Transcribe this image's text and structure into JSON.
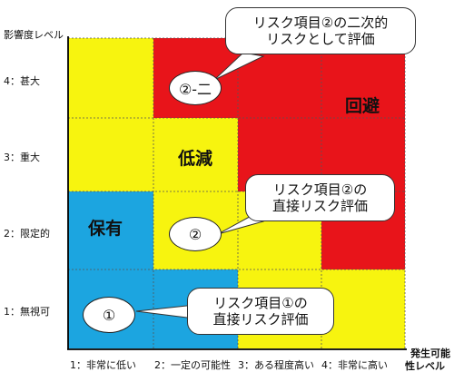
{
  "axes": {
    "y_title": "影響度レベル",
    "y_ticks": [
      "4：甚大",
      "3：重大",
      "2：限定的",
      "1：無視可"
    ],
    "x_title_line1": "発生可能",
    "x_title_line2": "性レベル",
    "x_ticks": [
      "1：非常に低い",
      "2：一定の可能性",
      "3：ある程度高い",
      "4：非常に高い"
    ]
  },
  "zones": {
    "avoid": "回避",
    "reduce": "低減",
    "retain": "保有"
  },
  "markers": {
    "m1": "①",
    "m2": "②",
    "m2_2": "②-二"
  },
  "callouts": {
    "c1_line1": "リスク項目①の",
    "c1_line2": "直接リスク評価",
    "c2_line1": "リスク項目②の",
    "c2_line2": "直接リスク評価",
    "c3_line1": "リスク項目②の二次的",
    "c3_line2": "リスクとして評価"
  },
  "colors": {
    "red": "#E8141A",
    "yellow": "#F7F40F",
    "blue": "#1CA5E0"
  }
}
